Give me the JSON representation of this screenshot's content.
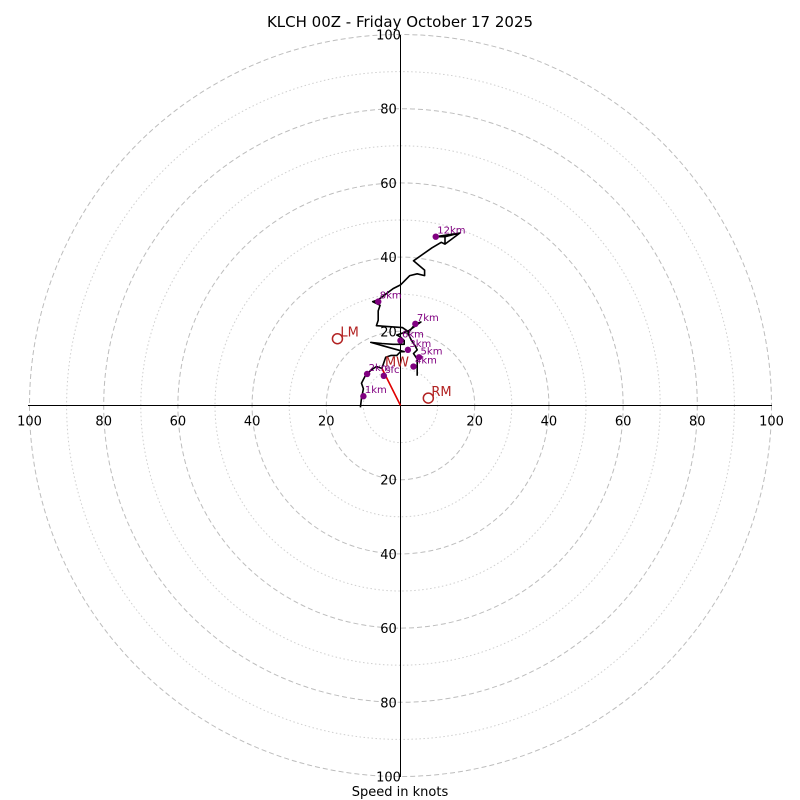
{
  "chart_data": {
    "type": "hodograph",
    "title": "KLCH 00Z - Friday October 17 2025",
    "xlabel": "Speed in knots",
    "ring_spacing": 10,
    "major_ring_spacing": 20,
    "max_speed": 100,
    "ticks": [
      20,
      40,
      60,
      80,
      100
    ],
    "colors": {
      "hodograph": "#000000",
      "height_markers": "#800080",
      "storm_motion": "#b22222",
      "motion_vector": "#e00000",
      "rings": "#bdbdbd"
    },
    "hodograph_uv": [
      [
        -10.8,
        -0.5
      ],
      [
        -10.5,
        2
      ],
      [
        -10,
        4.5
      ],
      [
        -10.5,
        6
      ],
      [
        -9.5,
        8
      ],
      [
        -8,
        9.5
      ],
      [
        -6.5,
        10.5
      ],
      [
        -5,
        10
      ],
      [
        -4.5,
        11.5
      ],
      [
        -4,
        13
      ],
      [
        -2.5,
        13.5
      ],
      [
        -1,
        13.5
      ],
      [
        0,
        14.5
      ],
      [
        1,
        14.5
      ],
      [
        -8,
        17
      ],
      [
        -5,
        16.7
      ],
      [
        -2,
        16.5
      ],
      [
        1,
        16.5
      ],
      [
        1,
        17.5
      ],
      [
        0,
        18.5
      ],
      [
        -1,
        19
      ],
      [
        2,
        20
      ],
      [
        0.5,
        21
      ],
      [
        -6.5,
        21.5
      ],
      [
        -6,
        23
      ],
      [
        -6,
        25.5
      ],
      [
        -5.5,
        27
      ],
      [
        -7.5,
        28
      ],
      [
        -6,
        28.5
      ],
      [
        -4,
        30
      ],
      [
        -2,
        31.5
      ],
      [
        0,
        32.5
      ],
      [
        2.5,
        35
      ],
      [
        4.5,
        35.5
      ],
      [
        6.5,
        35
      ],
      [
        6.5,
        36.5
      ],
      [
        3.5,
        39
      ],
      [
        8.5,
        42.5
      ],
      [
        11,
        44
      ],
      [
        12,
        43.5
      ],
      [
        12,
        45.5
      ],
      [
        16,
        46.5
      ],
      [
        12,
        45.5
      ],
      [
        9.5,
        45.5
      ],
      [
        16,
        46.5
      ],
      [
        12,
        43.5
      ],
      [
        11,
        44
      ],
      [
        8.5,
        42.5
      ],
      [
        3.5,
        39
      ],
      [
        6.5,
        36.5
      ],
      [
        6.5,
        35
      ],
      [
        4.5,
        35.5
      ],
      [
        2.5,
        35
      ],
      [
        0,
        32.5
      ],
      [
        -2,
        31.5
      ],
      [
        -4,
        30
      ],
      [
        -6,
        28.5
      ],
      [
        -7.5,
        28
      ],
      [
        -5.5,
        27
      ],
      [
        -6,
        25.5
      ],
      [
        -6,
        23
      ],
      [
        -6.5,
        21.5
      ],
      [
        0.5,
        21
      ],
      [
        2,
        20
      ],
      [
        5.5,
        22.5
      ],
      [
        4,
        22
      ],
      [
        2,
        19.5
      ],
      [
        3,
        17.5
      ],
      [
        4,
        16
      ],
      [
        4.5,
        15
      ],
      [
        3.5,
        14
      ],
      [
        4.5,
        12.5
      ],
      [
        4.5,
        8
      ]
    ],
    "height_markers": [
      {
        "label": "sfc",
        "u": -4.5,
        "v": 8
      },
      {
        "label": "1km",
        "u": -10,
        "v": 2.5
      },
      {
        "label": "2km",
        "u": -9,
        "v": 8.5
      },
      {
        "label": "3km",
        "u": 2,
        "v": 15
      },
      {
        "label": "4km",
        "u": 3.5,
        "v": 10.5
      },
      {
        "label": "5km",
        "u": 5,
        "v": 13
      },
      {
        "label": "6km",
        "u": 0,
        "v": 17.5
      },
      {
        "label": "7km",
        "u": 4,
        "v": 22
      },
      {
        "label": "8km",
        "u": -6,
        "v": 28
      },
      {
        "label": "12km",
        "u": 9.5,
        "v": 45.5
      }
    ],
    "storm_motion": [
      {
        "label": "LM",
        "u": -17,
        "v": 18
      },
      {
        "label": "MW",
        "u": -5,
        "v": 10
      },
      {
        "label": "RM",
        "u": 7.5,
        "v": 2
      }
    ],
    "motion_vector": {
      "from": [
        0,
        0
      ],
      "to": [
        -5,
        10
      ]
    }
  }
}
